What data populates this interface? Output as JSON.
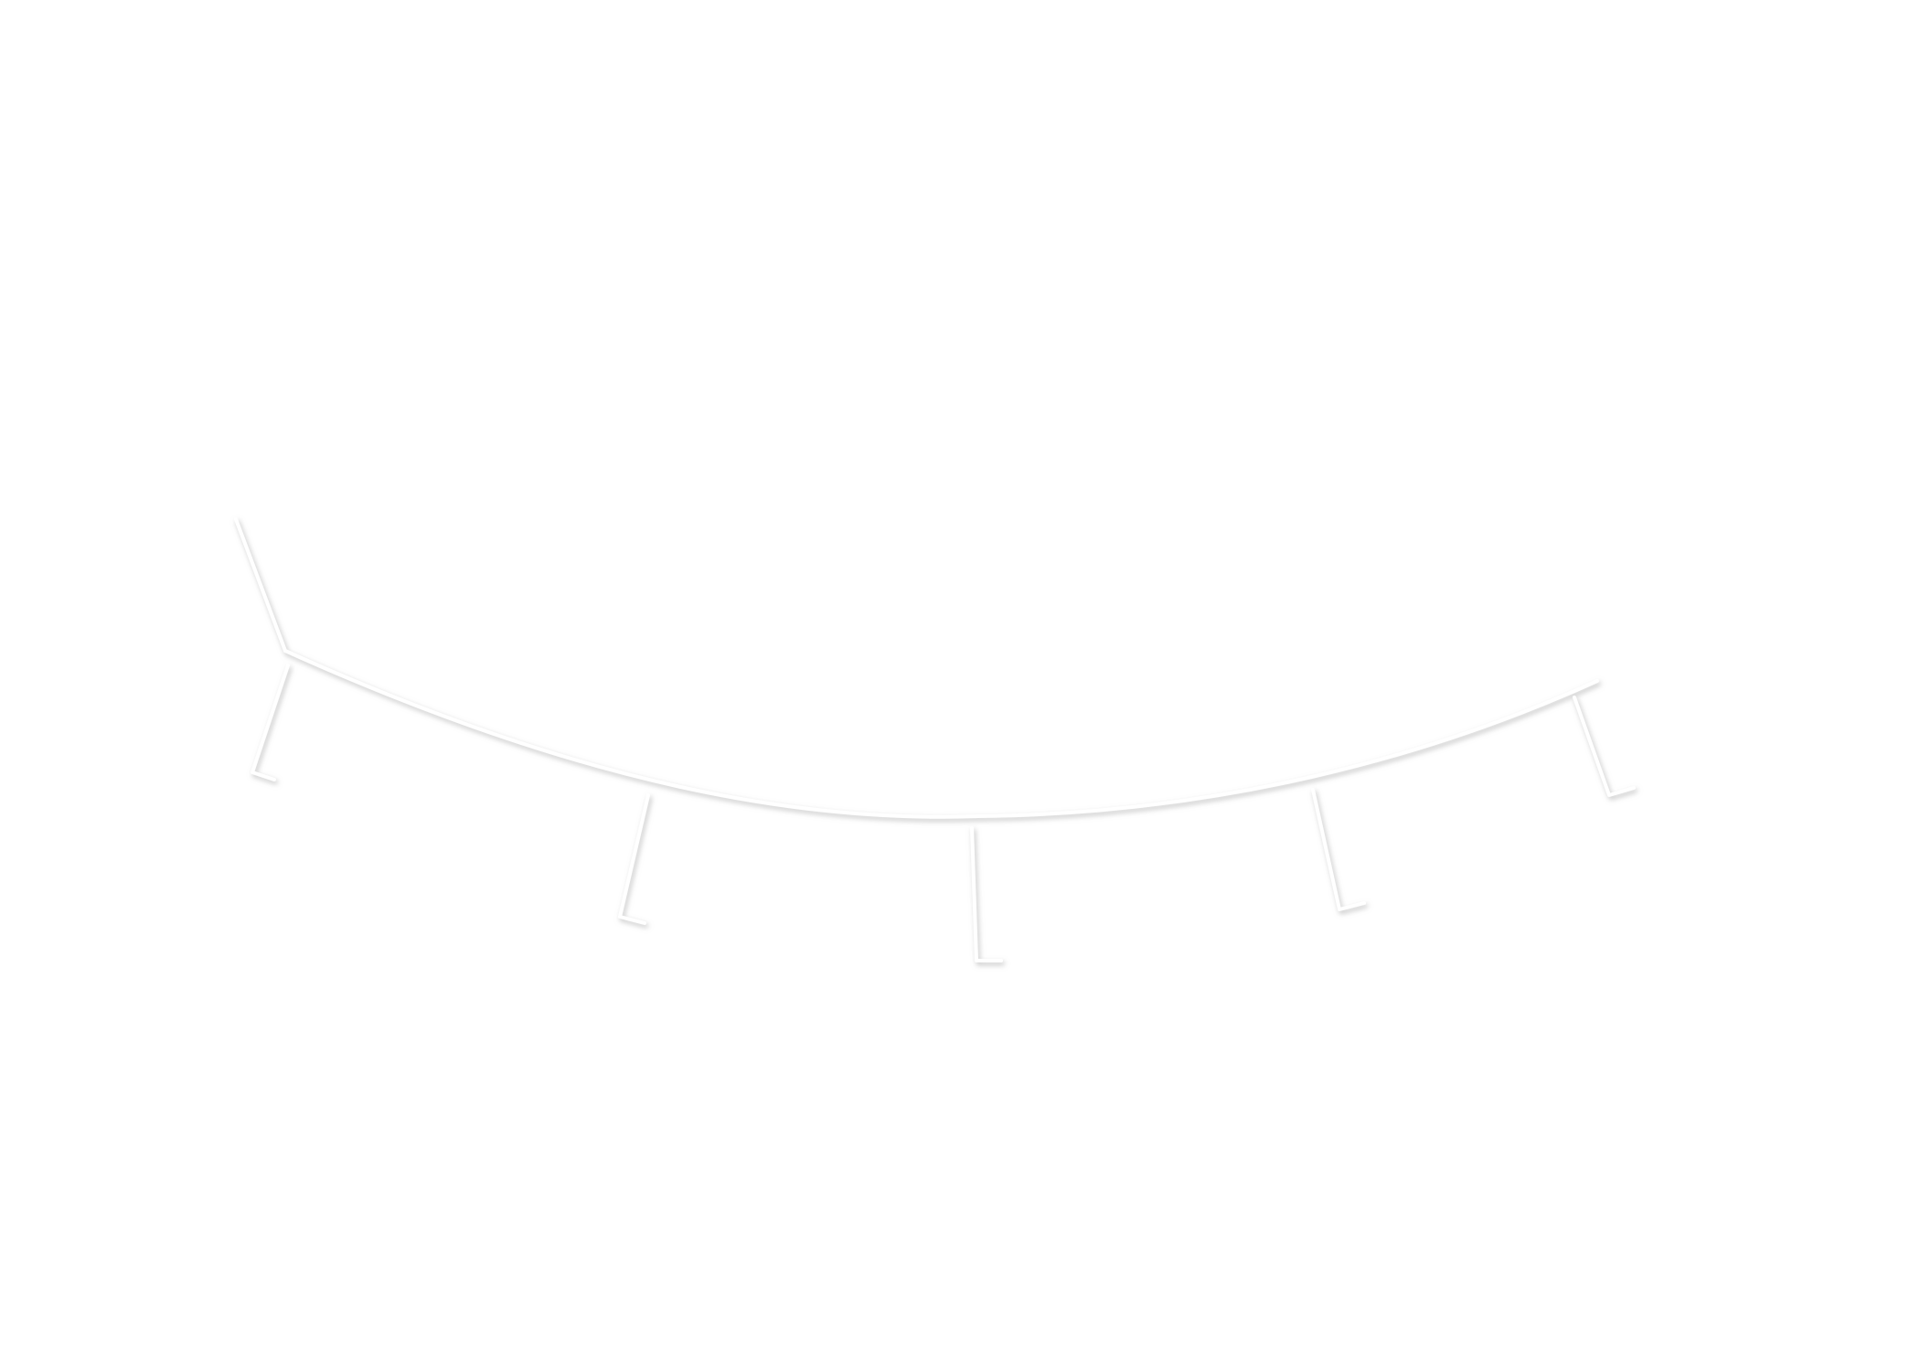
{
  "canvas": {
    "background": "#ffffff"
  },
  "drawing": {
    "stroke_color": "#ffffff",
    "shadow_color": "#bdbdbd",
    "elements": [
      "main-arc",
      "left-end-hook",
      "lash-1",
      "lash-2",
      "lash-3",
      "lash-4",
      "lash-5"
    ]
  }
}
